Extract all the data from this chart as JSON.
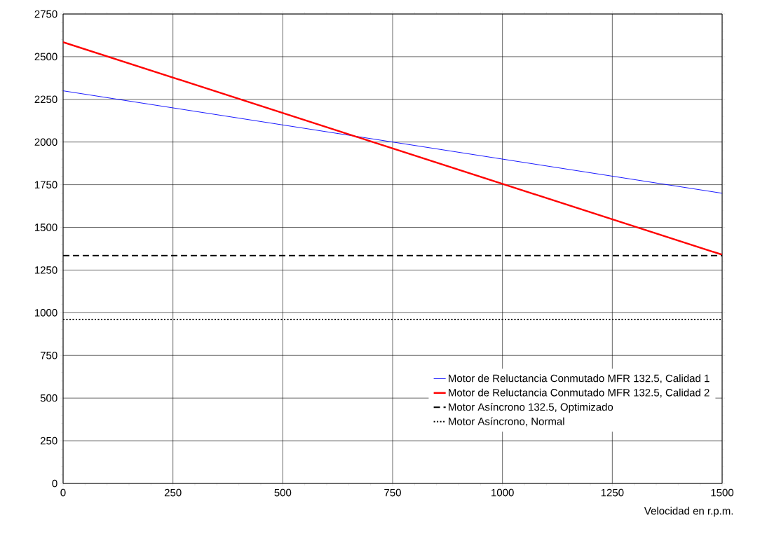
{
  "chart_data": {
    "type": "line",
    "xlabel": "Velocidad en r.p.m.",
    "x": [
      0,
      1500
    ],
    "series": [
      {
        "name": "Motor de Reluctancia Conmutado MFR 132.5, Calidad 1",
        "color": "#0000ff",
        "values": [
          2300,
          1700
        ],
        "line_style": "solid"
      },
      {
        "name": "Motor de Reluctancia Conmutado MFR 132.5, Calidad 2",
        "color": "#ff0000",
        "values": [
          2585,
          1340
        ],
        "line_style": "solid"
      },
      {
        "name": "Motor Asíncrono 132.5, Optimizado",
        "color": "#000000",
        "values": [
          1335,
          1335
        ],
        "line_style": "dashed"
      },
      {
        "name": "Motor Asíncrono, Normal",
        "color": "#000000",
        "values": [
          960,
          960
        ],
        "line_style": "dotted"
      }
    ],
    "xlim": [
      0,
      1500
    ],
    "ylim": [
      0,
      2750
    ],
    "xticks": [
      0,
      250,
      500,
      750,
      1000,
      1250,
      1500
    ],
    "yticks": [
      0,
      250,
      500,
      750,
      1000,
      1250,
      1500,
      1750,
      2000,
      2250,
      2500,
      2750
    ],
    "grid": true,
    "legend": "bottom right",
    "marker": "none"
  }
}
